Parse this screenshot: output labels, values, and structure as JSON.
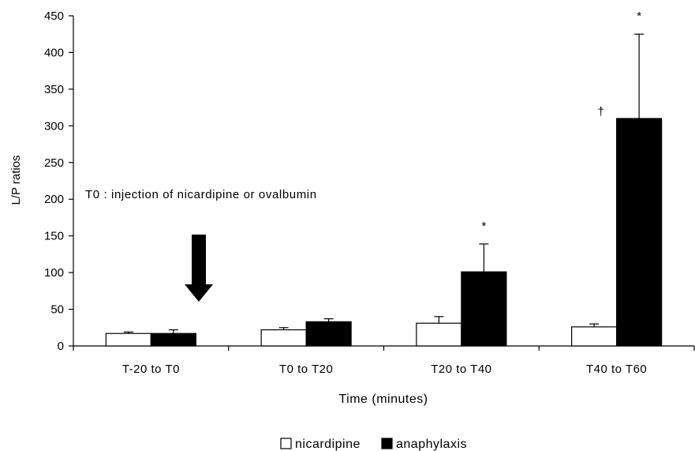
{
  "chart_data": {
    "type": "bar",
    "title": "",
    "xlabel": "Time (minutes)",
    "ylabel": "L/P ratios",
    "ylim": [
      0,
      450
    ],
    "yticks": [
      0,
      50,
      100,
      150,
      200,
      250,
      300,
      350,
      400,
      450
    ],
    "grid": false,
    "legend_position": "bottom-center",
    "categories": [
      "T-20 to T0",
      "T0 to T20",
      "T20 to T40",
      "T40 to T60"
    ],
    "series": [
      {
        "name": "nicardipine",
        "color": "#ffffff",
        "values": [
          17,
          22,
          31,
          26
        ],
        "error": [
          2,
          3,
          9,
          4
        ]
      },
      {
        "name": "anaphylaxis",
        "color": "#000000",
        "values": [
          17,
          33,
          101,
          310
        ],
        "error": [
          5,
          4,
          38,
          115
        ]
      }
    ],
    "annotations": {
      "injection_note": "T0 : injection of nicardipine or ovalbumin",
      "markers": [
        {
          "text": "*",
          "category": 2,
          "series": 1
        },
        {
          "text": "*",
          "category": 3,
          "series": 1
        },
        {
          "text": "†",
          "category": 3,
          "series": 1
        }
      ]
    }
  }
}
